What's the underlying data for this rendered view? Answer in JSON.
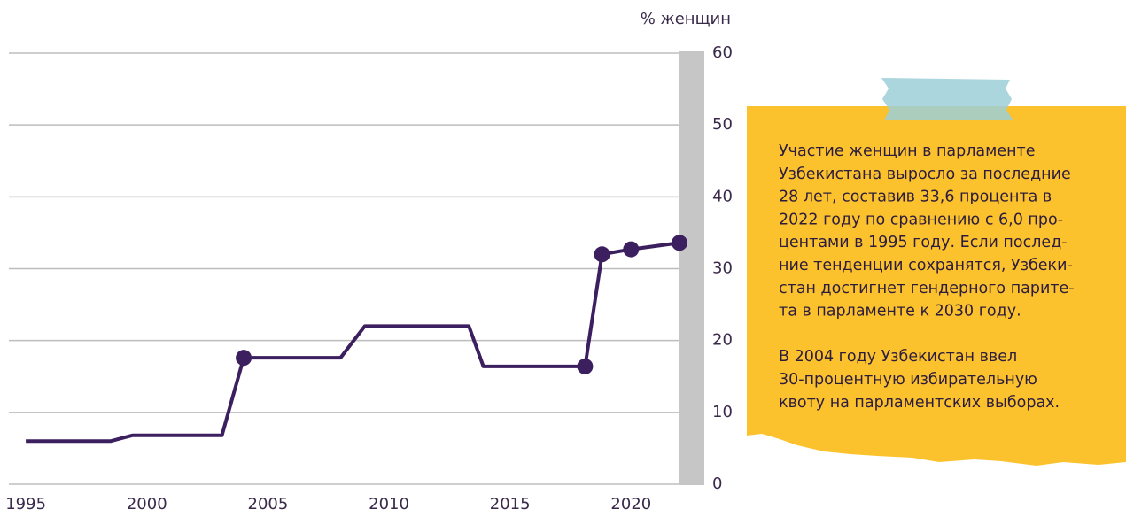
{
  "chart_data": {
    "type": "line",
    "y_axis_label": "% женщин",
    "x": [
      1995,
      1998.5,
      1999.4,
      2003.1,
      2004,
      2008,
      2009,
      2013.3,
      2013.9,
      2018.1,
      2018.8,
      2020,
      2022
    ],
    "series": [
      {
        "color": "#3b1f5e",
        "values": [
          6.0,
          6.0,
          6.8,
          6.8,
          17.6,
          17.6,
          22.0,
          22.0,
          16.4,
          16.4,
          32.0,
          32.7,
          33.6
        ],
        "markers": [
          false,
          false,
          false,
          false,
          true,
          false,
          false,
          false,
          false,
          true,
          true,
          true,
          true
        ]
      }
    ],
    "xlim": [
      1994.3,
      2022
    ],
    "xticks": [
      1995,
      2000,
      2005,
      2010,
      2015,
      2020
    ],
    "ylim": [
      0,
      60
    ],
    "yticks": [
      0,
      10,
      20,
      30,
      40,
      50,
      60
    ],
    "grid": true,
    "note": {
      "paragraphs": [
        [
          "Участие женщин в парламенте",
          "Узбекистана выросло за последние",
          "28 лет, составив 33,6 процента в",
          "2022 году по сравнению с 6,0 про-",
          "центами в 1995 году. Если послед-",
          "ние тенденции сохранятся, Узбеки-",
          "стан достигнет гендерного парите-",
          "та в парламенте к 2030 году."
        ],
        [
          "В 2004 году Узбекистан ввел",
          "30-процентную избирательную",
          "квоту на парламентских выборах."
        ]
      ]
    }
  }
}
